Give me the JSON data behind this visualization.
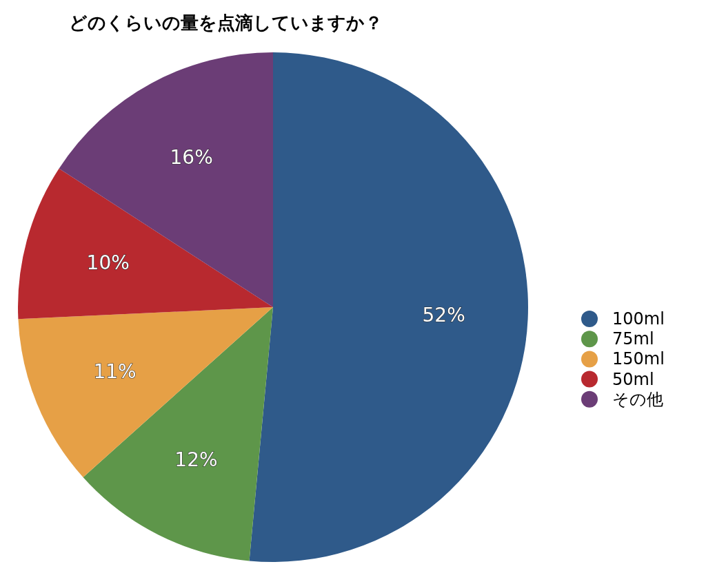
{
  "chart_data": {
    "type": "pie",
    "title": "どのくらいの量を点滴していますか？",
    "categories": [
      "100ml",
      "75ml",
      "150ml",
      "50ml",
      "その他"
    ],
    "values": [
      52,
      12,
      11,
      10,
      16
    ],
    "value_labels": [
      "52%",
      "12%",
      "11%",
      "10%",
      "16%"
    ],
    "colors": [
      "#2f5a8a",
      "#5e964a",
      "#e6a046",
      "#b8292f",
      "#6b3d76"
    ],
    "legend": "right"
  }
}
